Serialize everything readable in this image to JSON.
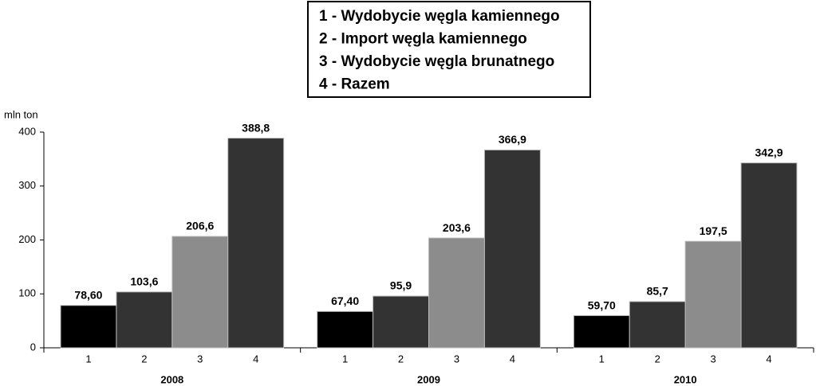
{
  "chart_data": {
    "type": "bar",
    "y_label": "mln ton",
    "categories": [
      "2008",
      "2009",
      "2010"
    ],
    "series_labels": [
      "1",
      "2",
      "3",
      "4"
    ],
    "series": [
      {
        "name": "1 - Wydobycie węgla kamiennego",
        "color": "#000000",
        "values": [
          78.6,
          67.4,
          59.7
        ],
        "value_labels": [
          "78,60",
          "67,40",
          "59,70"
        ]
      },
      {
        "name": "2 - Import węgla kamiennego",
        "color": "#333333",
        "values": [
          103.6,
          95.9,
          85.7
        ],
        "value_labels": [
          "103,6",
          "95,9",
          "85,7"
        ]
      },
      {
        "name": "3 - Wydobycie węgla brunatnego",
        "color": "#8c8c8c",
        "values": [
          206.6,
          203.6,
          197.5
        ],
        "value_labels": [
          "206,6",
          "203,6",
          "197,5"
        ]
      },
      {
        "name": "4 - Razem",
        "color": "#333333",
        "values": [
          388.8,
          366.9,
          342.9
        ],
        "value_labels": [
          "388,8",
          "366,9",
          "342,9"
        ]
      }
    ],
    "ylim": [
      0,
      400
    ],
    "yticks": [
      0,
      100,
      200,
      300,
      400
    ],
    "grid": false,
    "legend": "top"
  }
}
